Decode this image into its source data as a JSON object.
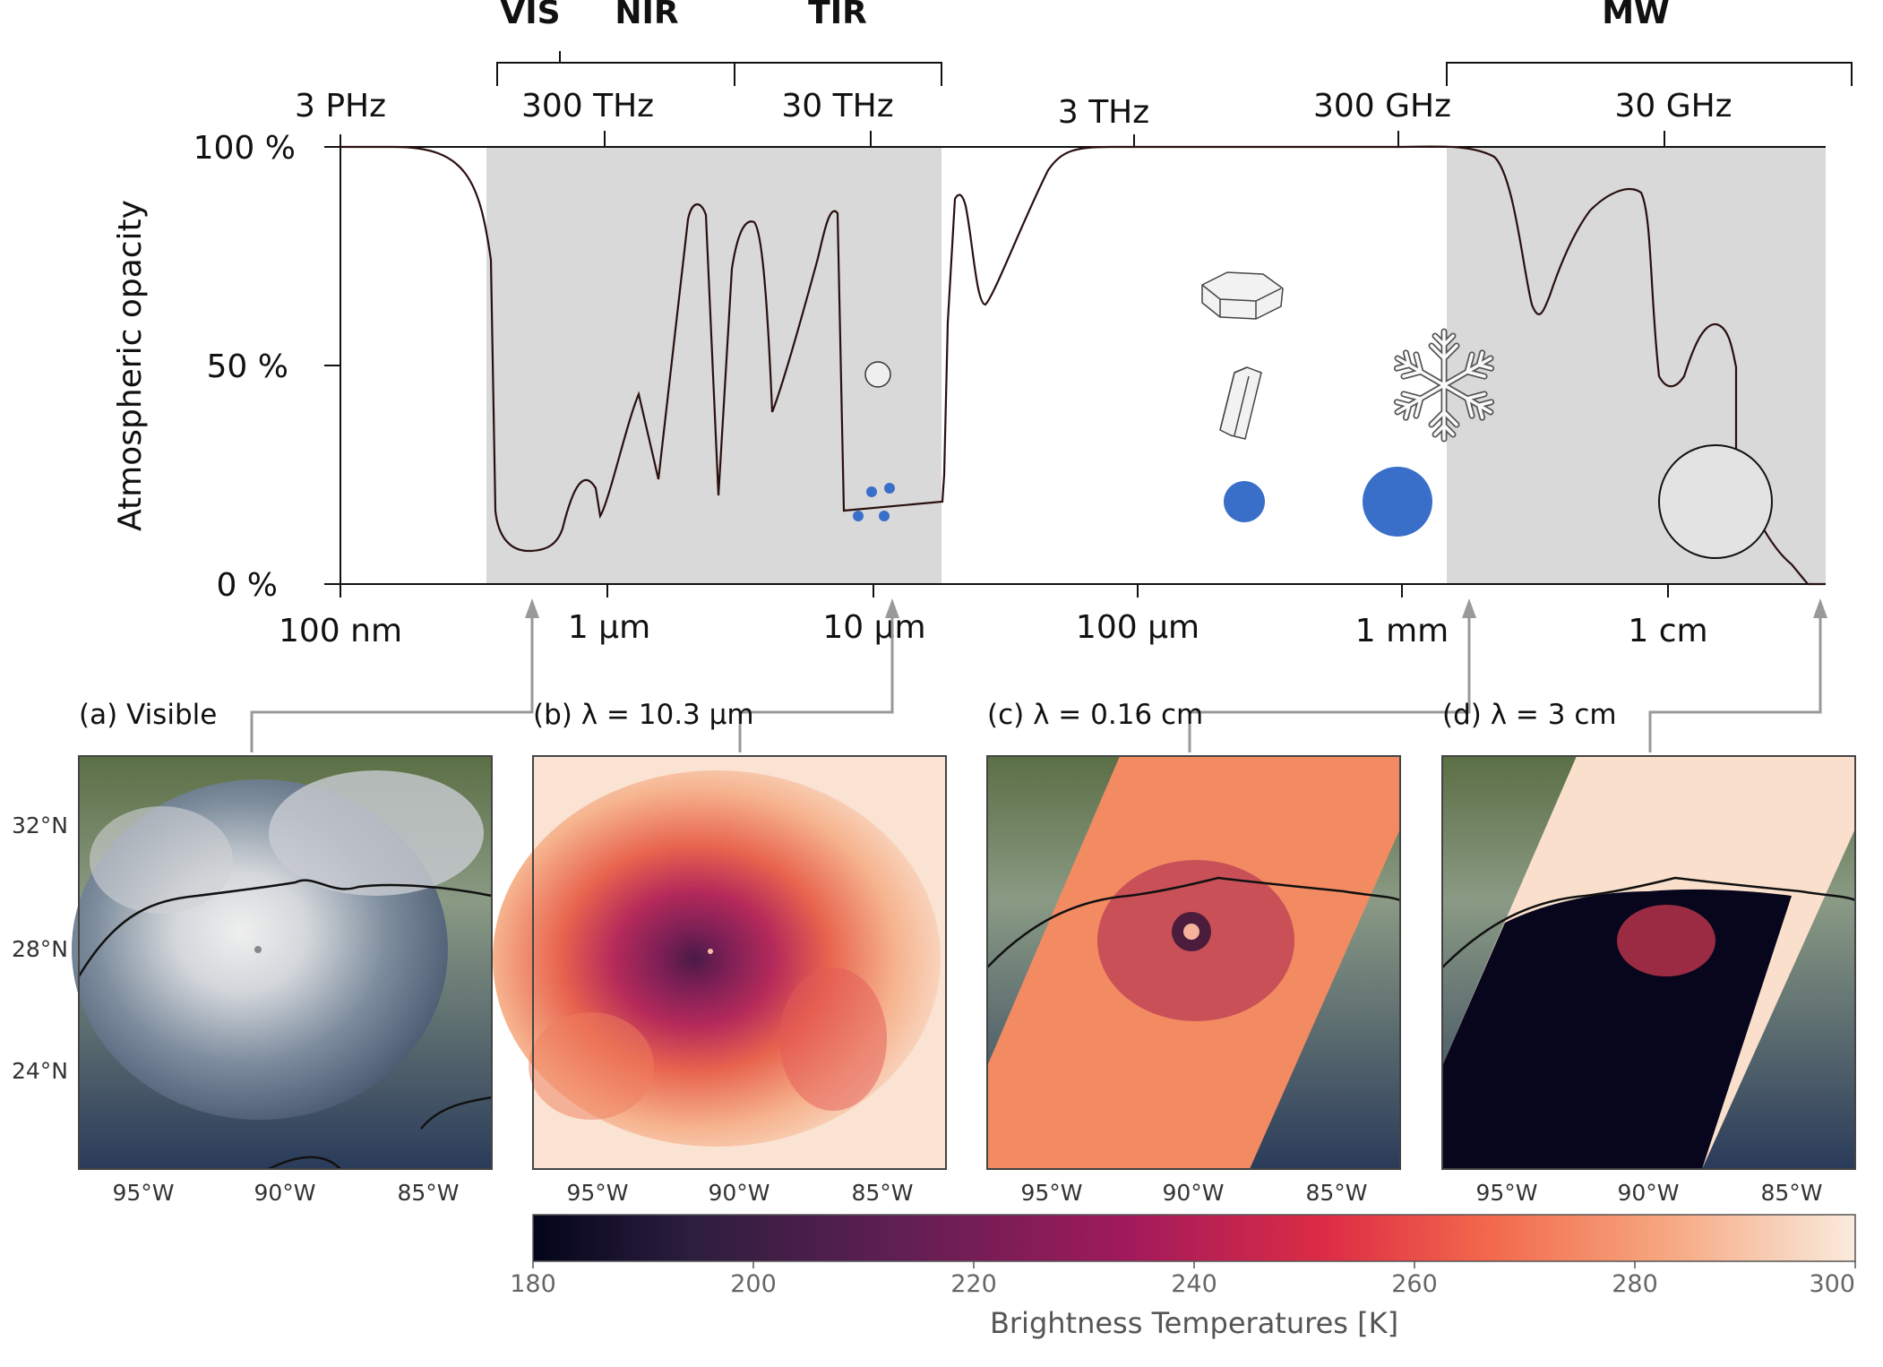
{
  "spectrum": {
    "bands": [
      "VIS",
      "NIR",
      "TIR",
      "MW"
    ],
    "frequencies": [
      "3 PHz",
      "300 THz",
      "30 THz",
      "3 THz",
      "300 GHz",
      "30 GHz"
    ],
    "wavelengths": [
      "100 nm",
      "1  µm",
      "10  µm",
      "100  µm",
      "1  mm",
      "1  cm"
    ],
    "yticks": [
      "100 %",
      "50 %",
      "0 %"
    ],
    "ylabel": "Atmospheric opacity"
  },
  "panels": [
    {
      "title": "(a) Visible"
    },
    {
      "title": "(b) λ = 10.3 µm"
    },
    {
      "title": "(c) λ = 0.16 cm"
    },
    {
      "title": "(d) λ = 3 cm"
    }
  ],
  "geo": {
    "lat_labels": [
      "32°N",
      "28°N",
      "24°N"
    ],
    "lon_labels": [
      "95°W",
      "90°W",
      "85°W"
    ]
  },
  "colorbar": {
    "title": "Brightness Temperatures [K]",
    "ticks": [
      "180",
      "200",
      "220",
      "240",
      "260",
      "280",
      "300"
    ]
  },
  "colors": {
    "shade": "#d9d9d9",
    "curve": "#2a0f0f",
    "drop": "#3a6fc9",
    "arrow": "#999999"
  }
}
